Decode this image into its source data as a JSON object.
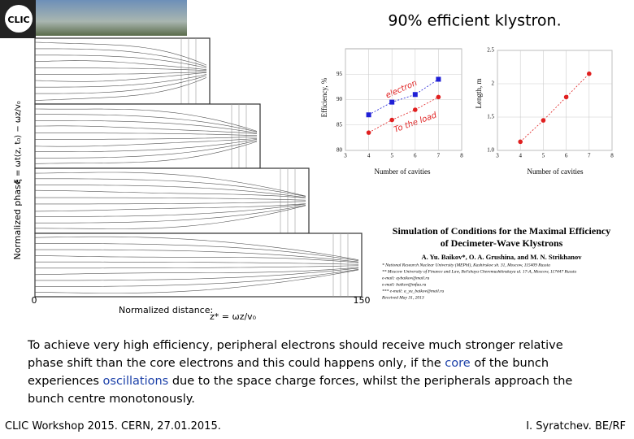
{
  "header": {
    "logo": "CLIC",
    "title": "90% efficient klystron."
  },
  "phase_plot": {
    "y_label": "Normalized phase",
    "x_start": "0",
    "x_end": "150",
    "x_label": "Normalized distance:",
    "y_formula": "ξ = ωt(z, t₀) − ωz/v₀",
    "x_formula": "z* = ωz/v₀"
  },
  "efficiency_chart": {
    "y_label": "Efficiency, %",
    "x_label": "Number of cavities",
    "xlim": [
      3,
      8
    ],
    "xticks": [
      3,
      4,
      5,
      6,
      7,
      8
    ],
    "ylim": [
      80,
      100
    ],
    "yticks": [
      80,
      85,
      90,
      95
    ],
    "x": [
      4,
      5,
      6,
      7
    ],
    "series": [
      {
        "name": "electron",
        "color": "#1f1fd6",
        "values": [
          87,
          89.5,
          91,
          94
        ]
      },
      {
        "name": "To the load",
        "color": "#e02020",
        "values": [
          83.5,
          86,
          88,
          90.5
        ]
      }
    ]
  },
  "length_chart": {
    "y_label": "Length, m",
    "x_label": "Number of cavities",
    "xlim": [
      3,
      8
    ],
    "xticks": [
      3,
      4,
      5,
      6,
      7,
      8
    ],
    "ylim": [
      1,
      2.5
    ],
    "yticks": [
      {
        "value": 1,
        "label": "1.0"
      },
      1.5,
      2,
      2.5
    ],
    "x": [
      4,
      5,
      6,
      7
    ],
    "color": "#e02020",
    "values": [
      1.13,
      1.45,
      1.8,
      2.15
    ]
  },
  "paper": {
    "title_1": "Simulation of Conditions for the Maximal Efficiency",
    "title_2": "of Decimeter-Wave Klystrons",
    "authors": "A. Yu. Baikov*, O. A. Grushina, and M. N. Strikhanov",
    "affiliations": [
      "* National Research Nuclear University (MEPhI), Kashirskoe sh. 31, Moscow, 115409 Russia",
      "** Moscow University of Finance and Law, Bol'shaya Cheremushkinskaya ul. 17-A, Moscow, 117447 Russia",
      "e-mail: aybaikov@mail.ru",
      "e-mail: baikov@mfua.ru",
      "*** e-mail: a_yu_baikov@mail.ru",
      "Received May 31, 2013"
    ]
  },
  "body": {
    "part_1": "To achieve very high efficiency, peripheral electrons should receive much stronger relative phase shift than the core electrons and this could happens only, if the ",
    "core": "core",
    "part_2": " of the bunch experiences ",
    "oscillations": "oscillations",
    "part_3": " due to the space charge forces, whilst the peripherals approach the bunch centre monotonously."
  },
  "footer": {
    "left": "CLIC Workshop 2015. CERN, 27.01.2015.",
    "right": "I. Syratchev. BE/RF"
  }
}
